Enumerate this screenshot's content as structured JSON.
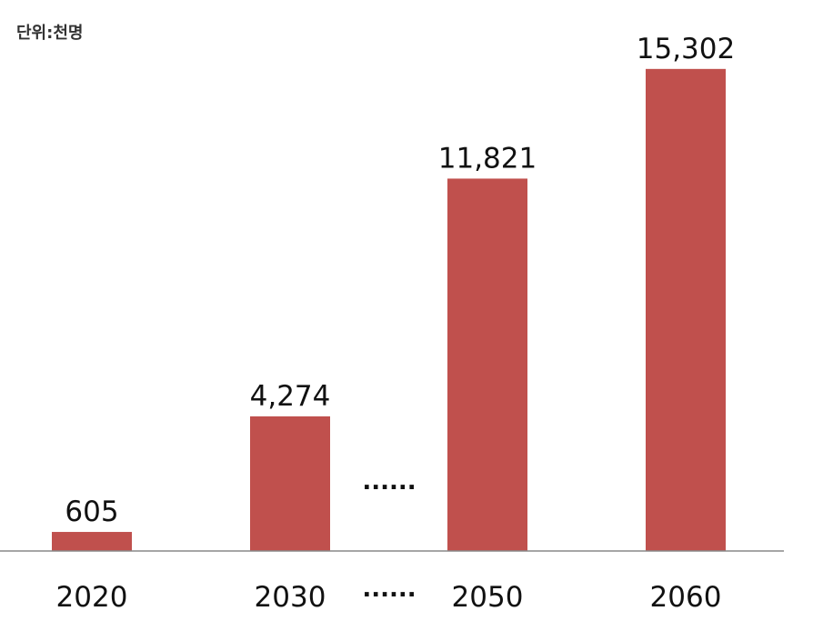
{
  "chart_data": {
    "type": "bar",
    "unit_label": "단위:천명",
    "categories": [
      "2020",
      "2030",
      "2050",
      "2060"
    ],
    "values": [
      605,
      4274,
      11821,
      15302
    ],
    "value_labels": [
      "605",
      "4,274",
      "11,821",
      "15,302"
    ],
    "gap_marker": "......",
    "bar_color": "#c0504d",
    "axis_color": "#888888",
    "ylim": [
      0,
      17000
    ],
    "grid": false,
    "legend": false
  }
}
